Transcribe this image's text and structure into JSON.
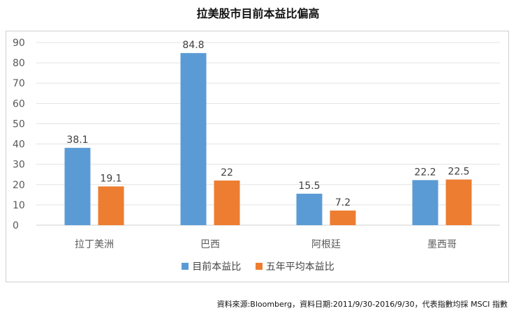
{
  "page": {
    "title": "拉美股市目前本益比偏高",
    "source": "資料來源:Bloomberg，資料日期:2011/9/30-2016/9/30，代表指數均採 MSCI 指數"
  },
  "colors": {
    "series1": "#5b9bd5",
    "series2": "#ed7d31",
    "grid": "#e3e3e3",
    "axis": "#595959"
  },
  "chart_data": {
    "type": "bar",
    "title": "拉美股市目前本益比偏高",
    "categories": [
      "拉丁美洲",
      "巴西",
      "阿根廷",
      "墨西哥"
    ],
    "series": [
      {
        "name": "目前本益比",
        "values": [
          38.1,
          84.8,
          15.5,
          22.2
        ],
        "labels": [
          "38.1",
          "84.8",
          "15.5",
          "22.2"
        ]
      },
      {
        "name": "五年平均本益比",
        "values": [
          19.1,
          22,
          7.2,
          22.5
        ],
        "labels": [
          "19.1",
          "22",
          "7.2",
          "22.5"
        ]
      }
    ],
    "yticks": [
      "0",
      "10",
      "20",
      "30",
      "40",
      "50",
      "60",
      "70",
      "80",
      "90"
    ],
    "ylim": [
      0,
      90
    ],
    "grid": true,
    "legend_position": "bottom"
  }
}
